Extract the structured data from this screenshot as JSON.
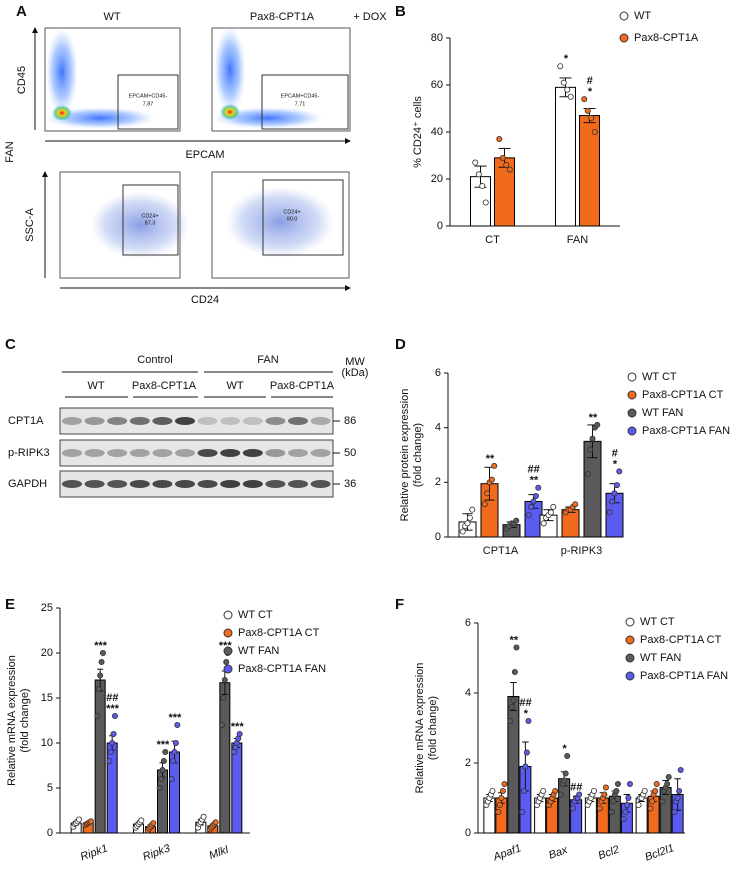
{
  "flow": {
    "panel": "A",
    "columns": [
      "WT",
      "Pax8-CPT1A"
    ],
    "treatment": "+ DOX",
    "row_label": "FAN",
    "top": {
      "ylabel": "CD45",
      "xlabel": "EPCAM",
      "gates": [
        {
          "name": "EPCAM+CD45-",
          "value": "7.87"
        },
        {
          "name": "EPCAM+CD45-",
          "value": "7.71"
        }
      ]
    },
    "bottom": {
      "ylabel": "SSC-A",
      "xlabel": "CD24",
      "gates": [
        {
          "name": "CD24+",
          "value": "87.3"
        },
        {
          "name": "CD24+",
          "value": "90.0"
        }
      ]
    }
  },
  "blot": {
    "panel": "C",
    "groups": [
      "Control",
      "FAN"
    ],
    "genotypes": [
      "WT",
      "Pax8-CPT1A",
      "WT",
      "Pax8-CPT1A"
    ],
    "mw_header": [
      "MW",
      "(kDa)"
    ],
    "rows": [
      {
        "label": "CPT1A",
        "mw": 86
      },
      {
        "label": "p-RIPK3",
        "mw": 50
      },
      {
        "label": "GAPDH",
        "mw": 36
      }
    ]
  },
  "chart_data": [
    {
      "type": "bar",
      "panel": "B",
      "ylabel": [
        "% CD24⁺ cells"
      ],
      "categories": [
        "CT",
        "FAN"
      ],
      "italic_categories": false,
      "edgecolor": "#000000",
      "ylim": [
        0,
        80
      ],
      "yticks": [
        0,
        20,
        40,
        60,
        80
      ],
      "series": [
        {
          "name": "WT",
          "color": "#ffffff",
          "values": [
            21,
            59
          ],
          "errors": [
            4.5,
            4
          ],
          "points": [
            [
              27,
              22,
              17,
              10
            ],
            [
              68,
              61,
              58,
              55
            ]
          ],
          "significance": [
            null,
            [
              "*"
            ]
          ]
        },
        {
          "name": "Pax8-CPT1A",
          "color": "#f26b1d",
          "values": [
            29,
            47
          ],
          "errors": [
            4,
            3
          ],
          "points": [
            [
              37,
              29,
              26,
              24
            ],
            [
              54,
              49,
              46,
              40
            ]
          ],
          "significance": [
            null,
            [
              "#",
              "*"
            ]
          ]
        }
      ]
    },
    {
      "type": "bar",
      "panel": "D",
      "ylabel": [
        "Relative protein expression",
        "(fold change)"
      ],
      "categories": [
        "CPT1A",
        "p-RIPK3"
      ],
      "italic_categories": false,
      "edgecolor": "#000000",
      "ylim": [
        0,
        6
      ],
      "yticks": [
        0,
        2,
        4,
        6
      ],
      "series": [
        {
          "name": "WT CT",
          "color": "#ffffff",
          "values": [
            0.55,
            0.8
          ],
          "errors": [
            0.3,
            0.2
          ],
          "points": [
            [
              0.2,
              0.4,
              0.5,
              0.7,
              1.0
            ],
            [
              0.5,
              0.7,
              0.8,
              0.9,
              1.1
            ]
          ],
          "significance": [
            null,
            null
          ]
        },
        {
          "name": "Pax8-CPT1A CT",
          "color": "#f26b1d",
          "values": [
            1.95,
            1.0
          ],
          "errors": [
            0.6,
            0.1
          ],
          "points": [
            [
              1.2,
              1.6,
              2.0,
              2.1,
              2.6
            ],
            [
              0.9,
              1.0,
              1.0,
              1.1,
              1.2
            ]
          ],
          "significance": [
            [
              "**"
            ],
            null
          ]
        },
        {
          "name": "WT FAN",
          "color": "#5a5a5a",
          "values": [
            0.45,
            3.5
          ],
          "errors": [
            0.1,
            0.6
          ],
          "points": [
            [
              0.3,
              0.4,
              0.5,
              0.5,
              0.6
            ],
            [
              2.3,
              3.2,
              3.6,
              4.0,
              4.1
            ]
          ],
          "significance": [
            null,
            [
              "**"
            ]
          ]
        },
        {
          "name": "Pax8-CPT1A FAN",
          "color": "#5b5bf0",
          "values": [
            1.3,
            1.6
          ],
          "errors": [
            0.25,
            0.35
          ],
          "points": [
            [
              0.8,
              1.1,
              1.3,
              1.5,
              1.8
            ],
            [
              0.9,
              1.3,
              1.6,
              1.9,
              2.4
            ]
          ],
          "significance": [
            [
              "##",
              "**"
            ],
            [
              "#",
              "*"
            ]
          ]
        }
      ]
    },
    {
      "type": "bar",
      "panel": "E",
      "ylabel": [
        "Relative mRNA expression",
        "(fold change)"
      ],
      "categories": [
        "Ripk1",
        "Ripk3",
        "Mlkl"
      ],
      "italic_categories": true,
      "edgecolor": "#000000",
      "ylim": [
        0,
        25
      ],
      "yticks": [
        0,
        5,
        10,
        15,
        20,
        25
      ],
      "series": [
        {
          "name": "WT CT",
          "color": "#ffffff",
          "values": [
            1.1,
            1.0,
            1.2
          ],
          "errors": [
            0.2,
            0.2,
            0.3
          ],
          "points": [
            [
              0.7,
              1.0,
              1.1,
              1.3,
              1.5
            ],
            [
              0.6,
              0.8,
              1.0,
              1.2,
              1.4
            ],
            [
              0.6,
              1.0,
              1.2,
              1.5,
              1.8
            ]
          ],
          "significance": [
            null,
            null,
            null
          ]
        },
        {
          "name": "Pax8-CPT1A CT",
          "color": "#f26b1d",
          "values": [
            1.1,
            0.7,
            0.8
          ],
          "errors": [
            0.1,
            0.2,
            0.2
          ],
          "points": [
            [
              0.9,
              1.0,
              1.1,
              1.2,
              1.3
            ],
            [
              0.3,
              0.5,
              0.7,
              0.9,
              1.1
            ],
            [
              0.4,
              0.6,
              0.8,
              1.0,
              1.2
            ]
          ],
          "significance": [
            null,
            null,
            null
          ]
        },
        {
          "name": "WT FAN",
          "color": "#5a5a5a",
          "values": [
            17,
            7,
            16.7
          ],
          "errors": [
            1.2,
            0.8,
            1.3
          ],
          "points": [
            [
              13,
              16,
              17.5,
              19,
              20
            ],
            [
              5,
              6,
              7,
              8,
              9
            ],
            [
              12,
              15,
              17,
              19,
              20
            ]
          ],
          "significance": [
            [
              "***"
            ],
            [
              "***"
            ],
            [
              "***"
            ]
          ]
        },
        {
          "name": "Pax8-CPT1A FAN",
          "color": "#5b5bf0",
          "values": [
            10,
            9,
            10
          ],
          "errors": [
            0.8,
            1.2,
            0.5
          ],
          "points": [
            [
              8,
              9,
              10,
              11,
              13
            ],
            [
              6,
              8,
              9,
              10,
              12
            ],
            [
              9,
              9.5,
              10,
              10.5,
              11
            ]
          ],
          "significance": [
            [
              "##",
              "***"
            ],
            [
              "***"
            ],
            [
              "***"
            ]
          ]
        }
      ]
    },
    {
      "type": "bar",
      "panel": "F",
      "ylabel": [
        "Relative mRNA expression",
        "(fold change)"
      ],
      "categories": [
        "Apaf1",
        "Bax",
        "Bcl2",
        "Bcl2l1"
      ],
      "italic_categories": true,
      "edgecolor": "#000000",
      "ylim": [
        0,
        6
      ],
      "yticks": [
        0,
        2,
        4,
        6
      ],
      "series": [
        {
          "name": "WT CT",
          "color": "#ffffff",
          "values": [
            1.0,
            1.0,
            1.0,
            1.0
          ],
          "errors": [
            0.1,
            0.1,
            0.1,
            0.1
          ],
          "points": [
            [
              0.8,
              0.9,
              1.0,
              1.1,
              1.2
            ],
            [
              0.8,
              0.9,
              1.0,
              1.1,
              1.2
            ],
            [
              0.8,
              0.9,
              1.0,
              1.1,
              1.2
            ],
            [
              0.8,
              1.0,
              1.0,
              1.1,
              1.2
            ]
          ],
          "significance": [
            null,
            null,
            null,
            null
          ]
        },
        {
          "name": "Pax8-CPT1A CT",
          "color": "#f26b1d",
          "values": [
            1.0,
            1.0,
            1.0,
            1.05
          ],
          "errors": [
            0.15,
            0.1,
            0.15,
            0.15
          ],
          "points": [
            [
              0.6,
              0.8,
              1.0,
              1.2,
              1.4
            ],
            [
              0.8,
              0.9,
              1.0,
              1.1,
              1.2
            ],
            [
              0.7,
              0.9,
              1.0,
              1.1,
              1.3
            ],
            [
              0.7,
              0.9,
              1.1,
              1.2,
              1.4
            ]
          ],
          "significance": [
            null,
            null,
            null,
            null
          ]
        },
        {
          "name": "WT FAN",
          "color": "#5a5a5a",
          "values": [
            3.9,
            1.55,
            1.05,
            1.3
          ],
          "errors": [
            0.4,
            0.2,
            0.15,
            0.2
          ],
          "points": [
            [
              3.2,
              3.6,
              3.8,
              4.6,
              5.3
            ],
            [
              1.1,
              1.4,
              1.5,
              1.7,
              2.2
            ],
            [
              0.6,
              0.9,
              1.1,
              1.2,
              1.4
            ],
            [
              0.9,
              1.2,
              1.3,
              1.4,
              1.6
            ]
          ],
          "significance": [
            [
              "**"
            ],
            [
              "*"
            ],
            null,
            null
          ]
        },
        {
          "name": "Pax8-CPT1A FAN",
          "color": "#5b5bf0",
          "values": [
            1.9,
            0.95,
            0.85,
            1.1
          ],
          "errors": [
            0.7,
            0.1,
            0.25,
            0.45
          ],
          "points": [
            [
              0.6,
              1.2,
              1.9,
              2.3,
              3.2
            ],
            [
              0.7,
              0.9,
              1.0,
              1.0,
              1.1
            ],
            [
              0.4,
              0.6,
              0.8,
              1.0,
              1.4
            ],
            [
              0.6,
              0.9,
              1.0,
              1.2,
              1.8
            ]
          ],
          "significance": [
            [
              "##",
              "*"
            ],
            [
              "##"
            ],
            null,
            null
          ]
        }
      ]
    }
  ]
}
